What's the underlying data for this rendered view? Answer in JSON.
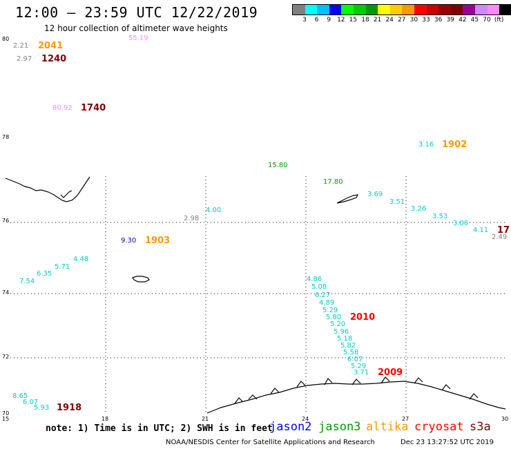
{
  "title": "12:00 — 23:59 UTC 12/22/2019",
  "subtitle": "12 hour collection of altimeter wave heights",
  "legend": {
    "colors": [
      "#808080",
      "#00ffff",
      "#00bfff",
      "#0000ff",
      "#00ff00",
      "#00cc00",
      "#009900",
      "#ffff00",
      "#ffcc00",
      "#ff9900",
      "#ff0000",
      "#cc0000",
      "#990000",
      "#800000",
      "#990099",
      "#cc88ff",
      "#ff88ff",
      "#000000"
    ],
    "labels": [
      "3",
      "6",
      "9",
      "12",
      "15",
      "18",
      "21",
      "24",
      "27",
      "30",
      "33",
      "36",
      "39",
      "42",
      "45",
      "70",
      "(ft)"
    ]
  },
  "axes": {
    "lat_ticks": [
      "80",
      "78",
      "76",
      "74",
      "72",
      "70"
    ],
    "lon_ticks": [
      "15",
      "18",
      "21",
      "24",
      "27",
      "30"
    ]
  },
  "measurements": [
    {
      "text": "2.21",
      "color": "#808080"
    },
    {
      "text": "2.97",
      "color": "#808080"
    },
    {
      "text": "55.19",
      "color": "#ff88ff"
    },
    {
      "text": "80.92",
      "color": "#ff88ff"
    },
    {
      "text": "3.16",
      "color": "#00cccc"
    },
    {
      "text": "15.80",
      "color": "#009900"
    },
    {
      "text": "17.80",
      "color": "#009900"
    },
    {
      "text": "3.69",
      "color": "#00cccc"
    },
    {
      "text": "3.51",
      "color": "#00cccc"
    },
    {
      "text": "3.26",
      "color": "#00cccc"
    },
    {
      "text": "3.53",
      "color": "#00cccc"
    },
    {
      "text": "3.06",
      "color": "#00cccc"
    },
    {
      "text": "4.11",
      "color": "#00cccc"
    },
    {
      "text": "2.49",
      "color": "#808080"
    },
    {
      "text": "4.00",
      "color": "#00cccc"
    },
    {
      "text": "2.98",
      "color": "#808080"
    },
    {
      "text": "9.30",
      "color": "#0000cc"
    },
    {
      "text": "4.48",
      "color": "#00cccc"
    },
    {
      "text": "5.71",
      "color": "#00cccc"
    },
    {
      "text": "6.35",
      "color": "#00cccc"
    },
    {
      "text": "7.54",
      "color": "#00cccc"
    },
    {
      "text": "4.86",
      "color": "#00cccc"
    },
    {
      "text": "5.08",
      "color": "#00cccc"
    },
    {
      "text": "6.27",
      "color": "#00cccc"
    },
    {
      "text": "4.89",
      "color": "#00cccc"
    },
    {
      "text": "5.29",
      "color": "#00cccc"
    },
    {
      "text": "5.80",
      "color": "#00cccc"
    },
    {
      "text": "5.20",
      "color": "#00cccc"
    },
    {
      "text": "5.96",
      "color": "#00cccc"
    },
    {
      "text": "5.18",
      "color": "#00cccc"
    },
    {
      "text": "5.82",
      "color": "#00cccc"
    },
    {
      "text": "5.58",
      "color": "#00cccc"
    },
    {
      "text": "6.07",
      "color": "#00cccc"
    },
    {
      "text": "5.29",
      "color": "#00cccc"
    },
    {
      "text": "3.71",
      "color": "#00cccc"
    },
    {
      "text": "8.65",
      "color": "#00cccc"
    },
    {
      "text": "6.07",
      "color": "#00cccc"
    },
    {
      "text": "5.93",
      "color": "#00cccc"
    }
  ],
  "pass_times": [
    {
      "text": "2041",
      "color": "#ff9900"
    },
    {
      "text": "1240",
      "color": "#800000"
    },
    {
      "text": "1740",
      "color": "#800000"
    },
    {
      "text": "1902",
      "color": "#ff9900"
    },
    {
      "text": "17",
      "color": "#800000"
    },
    {
      "text": "1903",
      "color": "#ff9900"
    },
    {
      "text": "2010",
      "color": "#ff0000"
    },
    {
      "text": "2009",
      "color": "#ff0000"
    },
    {
      "text": "1918",
      "color": "#800000"
    }
  ],
  "note": "note: 1) Time is in UTC; 2) SWH is in feet",
  "satellites": [
    {
      "name": "jason2",
      "color": "#0000ff"
    },
    {
      "name": "jason3",
      "color": "#009900"
    },
    {
      "name": "altika",
      "color": "#ff9900"
    },
    {
      "name": "cryosat",
      "color": "#ff0000"
    },
    {
      "name": "s3a",
      "color": "#800000"
    }
  ],
  "credit": "NOAA/NESDIS Center for Satellite Applications and Research",
  "timestamp": "Dec 23 13:27:52 UTC 2019"
}
